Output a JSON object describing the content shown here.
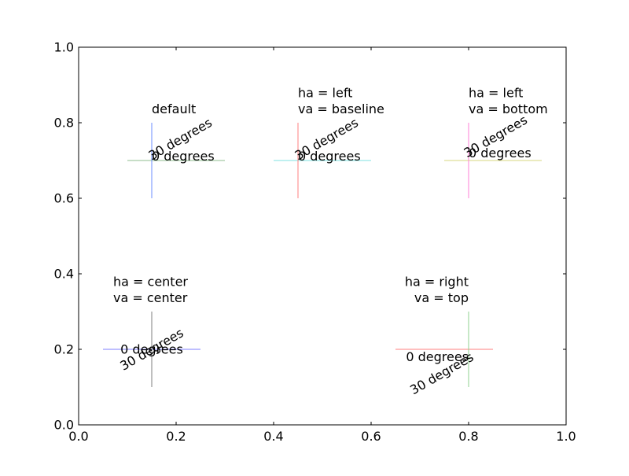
{
  "chart_data": {
    "type": "scatter",
    "title": "",
    "xlabel": "",
    "ylabel": "",
    "xlim": [
      0.0,
      1.0
    ],
    "ylim": [
      0.0,
      1.0
    ],
    "grid": false,
    "x_ticks": [
      0.0,
      0.2,
      0.4,
      0.6,
      0.8,
      1.0
    ],
    "x_tick_labels": [
      "0.0",
      "0.2",
      "0.4",
      "0.6",
      "0.8",
      "1.0"
    ],
    "y_ticks": [
      0.0,
      0.2,
      0.4,
      0.6,
      0.8,
      1.0
    ],
    "y_tick_labels": [
      "0.0",
      "0.2",
      "0.4",
      "0.6",
      "0.8",
      "1.0"
    ],
    "demos": [
      {
        "id": "default",
        "x": 0.15,
        "y": 0.7,
        "label": [
          "default"
        ],
        "ha": "left",
        "va": "baseline",
        "hcolor": "#8fbc8f",
        "vcolor": "#6b8cff",
        "hline": [
          0.1,
          0.3
        ],
        "vline": [
          0.6,
          0.8
        ],
        "texts": [
          "0 degrees",
          "30 degrees"
        ],
        "rotations": [
          0,
          30
        ]
      },
      {
        "id": "left-baseline",
        "x": 0.45,
        "y": 0.7,
        "label": [
          "ha = left",
          "va = baseline"
        ],
        "ha": "left",
        "va": "baseline",
        "hcolor": "#7fe0e0",
        "vcolor": "#ff7f7f",
        "hline": [
          0.4,
          0.6
        ],
        "vline": [
          0.6,
          0.8
        ],
        "texts": [
          "0 degrees",
          "30 degrees"
        ],
        "rotations": [
          0,
          30
        ]
      },
      {
        "id": "left-bottom",
        "x": 0.8,
        "y": 0.7,
        "label": [
          "ha = left",
          "va = bottom"
        ],
        "ha": "left",
        "va": "bottom",
        "hcolor": "#d7d77f",
        "vcolor": "#ff7fd7",
        "hline": [
          0.75,
          0.95
        ],
        "vline": [
          0.6,
          0.8
        ],
        "texts": [
          "0 degrees",
          "30 degrees"
        ],
        "rotations": [
          0,
          30
        ]
      },
      {
        "id": "center-center",
        "x": 0.15,
        "y": 0.2,
        "label": [
          "ha = center",
          "va = center"
        ],
        "ha": "center",
        "va": "center",
        "hcolor": "#7f7fff",
        "vcolor": "#7f7f7f",
        "hline": [
          0.05,
          0.25
        ],
        "vline": [
          0.1,
          0.3
        ],
        "texts": [
          "0 degrees",
          "30 degrees"
        ],
        "rotations": [
          0,
          30
        ]
      },
      {
        "id": "right-top",
        "x": 0.8,
        "y": 0.2,
        "label": [
          "ha = right",
          "va = top"
        ],
        "ha": "right",
        "va": "top",
        "hcolor": "#ff7f7f",
        "vcolor": "#8fd08f",
        "hline": [
          0.65,
          0.85
        ],
        "vline": [
          0.1,
          0.3
        ],
        "texts": [
          "0 degrees",
          "30 degrees"
        ],
        "rotations": [
          0,
          30
        ]
      }
    ]
  }
}
